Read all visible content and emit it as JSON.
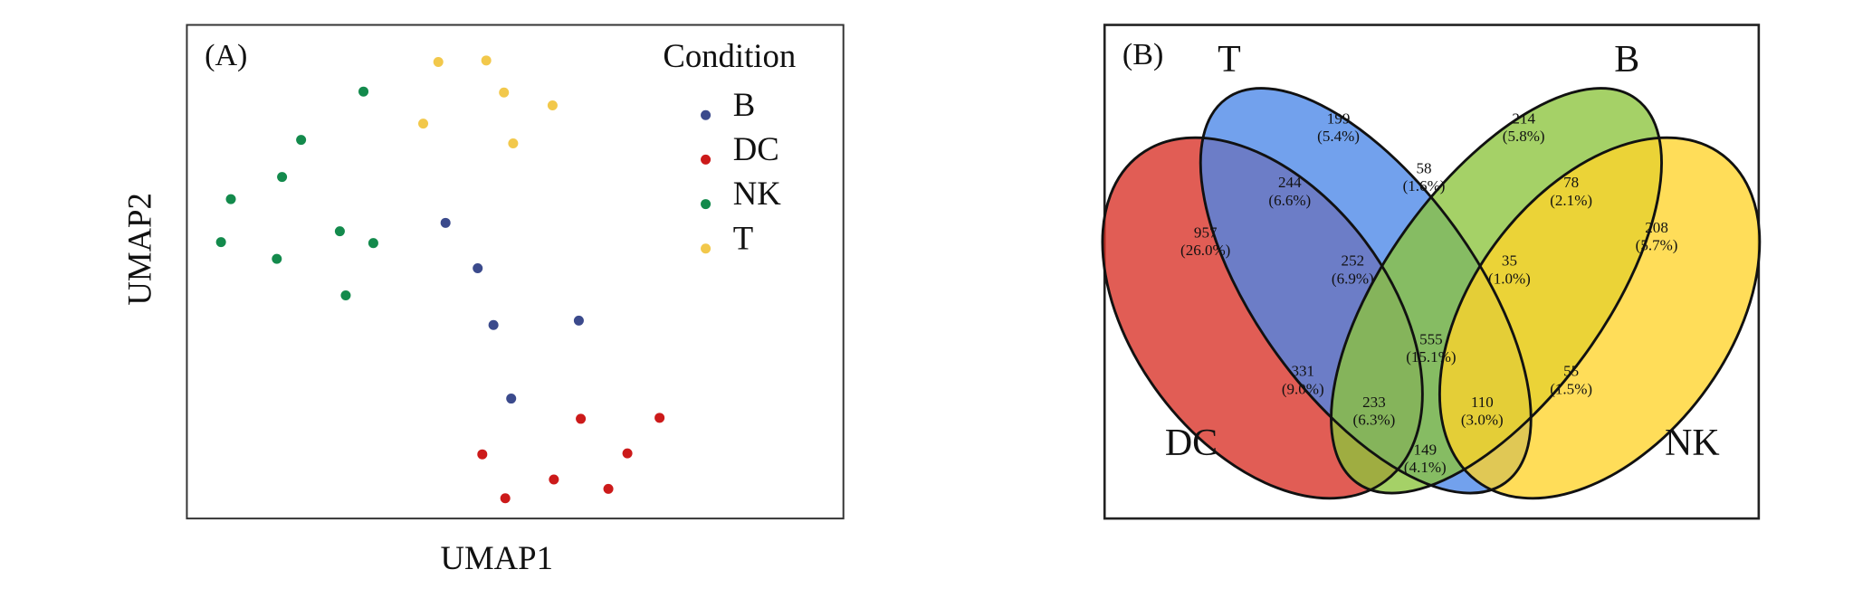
{
  "chart_data": [
    {
      "type": "scatter",
      "panel_label": "(A)",
      "x_label": "UMAP1",
      "y_label": "UMAP2",
      "legend_title": "Condition",
      "xlim": [
        0,
        100
      ],
      "ylim": [
        0,
        100
      ],
      "series": [
        {
          "name": "B",
          "color": "#3b4a8c",
          "x": [
            39.4,
            44.3,
            46.7,
            59.7,
            49.4
          ],
          "values": [
            59.9,
            50.7,
            39.2,
            40.1,
            24.3
          ]
        },
        {
          "name": "DC",
          "color": "#cc1a1a",
          "x": [
            60.0,
            72.0,
            45.0,
            67.1,
            55.9,
            64.2,
            48.5
          ],
          "values": [
            20.2,
            20.4,
            13.0,
            13.2,
            7.9,
            6.0,
            4.1
          ]
        },
        {
          "name": "NK",
          "color": "#138a4c",
          "x": [
            26.9,
            17.4,
            14.5,
            6.7,
            5.2,
            13.7,
            23.3,
            28.4,
            24.2
          ],
          "values": [
            86.5,
            76.7,
            69.2,
            64.7,
            56.0,
            52.6,
            58.2,
            55.8,
            45.2
          ]
        },
        {
          "name": "T",
          "color": "#f2c84b",
          "x": [
            38.3,
            45.6,
            48.3,
            55.7,
            36.0,
            49.7
          ],
          "values": [
            92.5,
            92.8,
            86.3,
            83.7,
            80.0,
            76.0
          ]
        }
      ]
    },
    {
      "type": "venn",
      "panel_label": "(B)",
      "sets": [
        {
          "name": "DC",
          "color": "#d93025"
        },
        {
          "name": "T",
          "color": "#4a86e8"
        },
        {
          "name": "B",
          "color": "#8cc43c"
        },
        {
          "name": "NK",
          "color": "#ffd32a"
        }
      ],
      "regions": [
        {
          "value": 957,
          "label": "(26.0%)"
        },
        {
          "value": 199,
          "label": "(5.4%)"
        },
        {
          "value": 214,
          "label": "(5.8%)"
        },
        {
          "value": 244,
          "label": "(6.6%)"
        },
        {
          "value": 58,
          "label": "(1.6%)"
        },
        {
          "value": 78,
          "label": "(2.1%)"
        },
        {
          "value": 208,
          "label": "(5.7%)"
        },
        {
          "value": 252,
          "label": "(6.9%)"
        },
        {
          "value": 35,
          "label": "(1.0%)"
        },
        {
          "value": 331,
          "label": "(9.0%)"
        },
        {
          "value": 555,
          "label": "(15.1%)"
        },
        {
          "value": 55,
          "label": "(1.5%)"
        },
        {
          "value": 233,
          "label": "(6.3%)"
        },
        {
          "value": 110,
          "label": "(3.0%)"
        },
        {
          "value": 149,
          "label": "(4.1%)"
        }
      ]
    }
  ]
}
